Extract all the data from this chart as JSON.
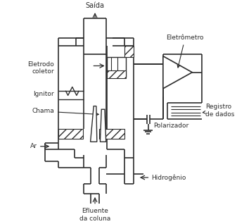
{
  "background_color": "#ffffff",
  "line_color": "#2c2c2c",
  "labels": {
    "saida": "Saída",
    "eletrodo_coletor": "Eletrodo\ncoletor",
    "ignitor": "Ignitor",
    "chama": "Chama",
    "ar": "Ar",
    "eletro": "Eletrômetro",
    "registro": "Registro\nde dados",
    "polarizador": "Polarizador",
    "hidrogenio": "Hidrogênio",
    "efluente": "Efluente\nda coluna"
  },
  "figsize": [
    3.37,
    3.18
  ],
  "dpi": 100
}
